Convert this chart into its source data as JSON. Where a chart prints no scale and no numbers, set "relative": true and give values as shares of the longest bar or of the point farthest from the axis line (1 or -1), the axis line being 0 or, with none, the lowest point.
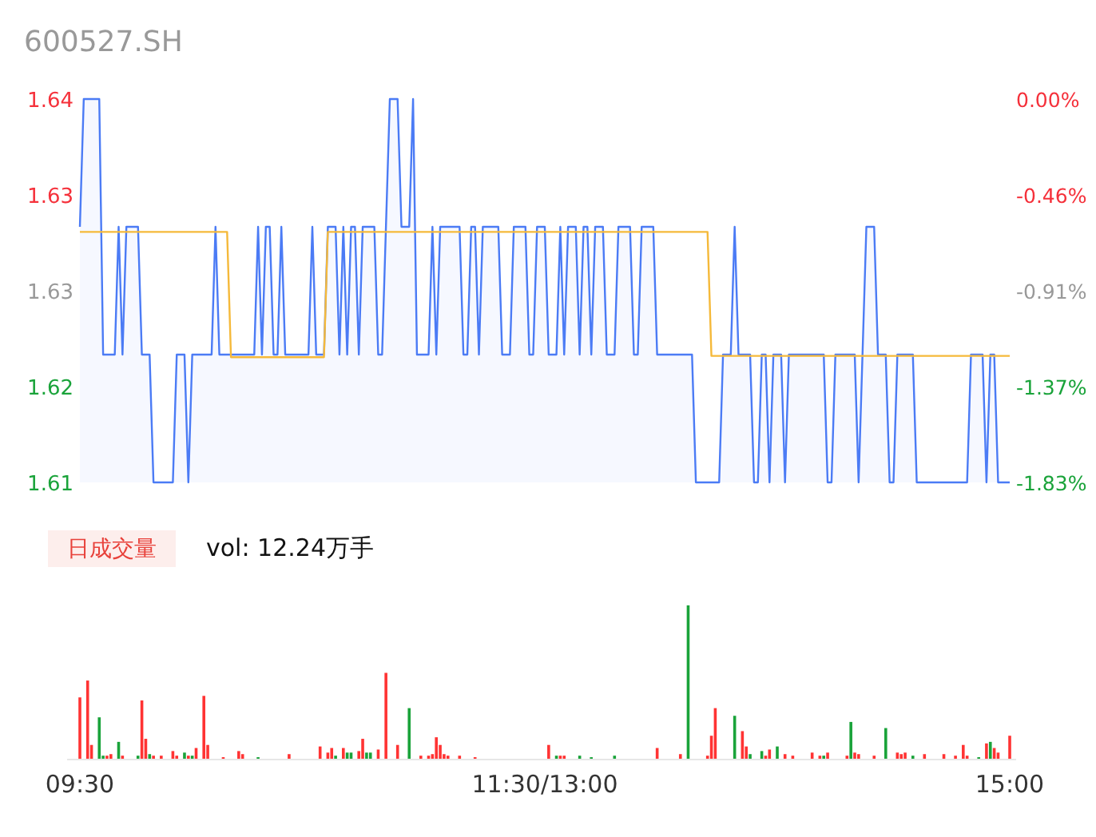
{
  "chart_data": [
    {
      "type": "line",
      "title": "600527.SH",
      "ylim": [
        1.61,
        1.64
      ],
      "categories": [
        null,
        null,
        null,
        null,
        null,
        null,
        null,
        null,
        null,
        null,
        null,
        null,
        null,
        null,
        null,
        null,
        null,
        null,
        null,
        null,
        null,
        null,
        null,
        null,
        null,
        null,
        null,
        null,
        null,
        null,
        null,
        null,
        null,
        null,
        null,
        null,
        null,
        null,
        null,
        null,
        null,
        null,
        null,
        null,
        null,
        null,
        null,
        null,
        null,
        null,
        null,
        null,
        null,
        null,
        null,
        null,
        null,
        null,
        null,
        null,
        null,
        null,
        null,
        null,
        null,
        null,
        null,
        null,
        null,
        null,
        null,
        null,
        null,
        null,
        null,
        null,
        null,
        null,
        null,
        null,
        null,
        null,
        null,
        null,
        null,
        null,
        null,
        null,
        null,
        null,
        null,
        null,
        null,
        null,
        null,
        null,
        null,
        null,
        null,
        null,
        null,
        null,
        null,
        null,
        null,
        null,
        null,
        null,
        null,
        null,
        null,
        null,
        null,
        null,
        null,
        null,
        null,
        null,
        null,
        null,
        null,
        null,
        null,
        null,
        null,
        null,
        null,
        null,
        null,
        null,
        null,
        null,
        null,
        null,
        null,
        null,
        null,
        null,
        null,
        null,
        null,
        null,
        null,
        null,
        null,
        null,
        null,
        null,
        null,
        null,
        null,
        null,
        null,
        null,
        null,
        null,
        null,
        null,
        null,
        null,
        null,
        null,
        null,
        null,
        null,
        null,
        null,
        null,
        null,
        null,
        null,
        null,
        null,
        null,
        null,
        null,
        null,
        null,
        null,
        null,
        null,
        null,
        null,
        null,
        null,
        null,
        null,
        null,
        null,
        null,
        null,
        null,
        null,
        null,
        null,
        null,
        null,
        null,
        null,
        null,
        null,
        null,
        null,
        null,
        null,
        null,
        null,
        null,
        null,
        null,
        null,
        null,
        null,
        null,
        null,
        null,
        null,
        null,
        null,
        null,
        null,
        null,
        null,
        null,
        null,
        null,
        null,
        null,
        null,
        null,
        null,
        null,
        null,
        null,
        null,
        null,
        null,
        null,
        null,
        null,
        null
      ],
      "yticks": [
        {
          "value": 1.61,
          "label": "1.61"
        },
        {
          "value": 1.6175,
          "label": "1.62"
        },
        {
          "value": 1.625,
          "label": "1.63"
        },
        {
          "value": 1.6325,
          "label": "1.63"
        },
        {
          "value": 1.64,
          "label": "1.64"
        }
      ],
      "y2lim": [
        -1.83,
        0
      ],
      "y2ticks": [
        {
          "value": -1.83,
          "label": "-1.83%"
        },
        {
          "value": -1.3725,
          "label": "-1.37%"
        },
        {
          "value": -0.915,
          "label": "-0.91%"
        },
        {
          "value": -0.4575,
          "label": "-0.46%"
        },
        {
          "value": 0,
          "label": "0.00%"
        }
      ],
      "tick_labels": "y",
      "series": [
        {
          "type": "area",
          "color": "#4b7bf5",
          "values": [
            1.63,
            1.64,
            1.64,
            1.64,
            1.64,
            1.64,
            1.62,
            1.62,
            1.62,
            1.62,
            1.63,
            1.62,
            1.63,
            1.63,
            1.63,
            1.63,
            1.62,
            1.62,
            1.62,
            1.61,
            1.61,
            1.61,
            1.61,
            1.61,
            1.61,
            1.62,
            1.62,
            1.62,
            1.61,
            1.62,
            1.62,
            1.62,
            1.62,
            1.62,
            1.62,
            1.63,
            1.62,
            1.62,
            1.62,
            1.62,
            1.62,
            1.62,
            1.62,
            1.62,
            1.62,
            1.62,
            1.63,
            1.62,
            1.63,
            1.63,
            1.62,
            1.62,
            1.63,
            1.62,
            1.62,
            1.62,
            1.62,
            1.62,
            1.62,
            1.62,
            1.63,
            1.62,
            1.62,
            1.62,
            1.63,
            1.63,
            1.63,
            1.62,
            1.63,
            1.62,
            1.63,
            1.63,
            1.62,
            1.63,
            1.63,
            1.63,
            1.63,
            1.62,
            1.62,
            1.63,
            1.64,
            1.64,
            1.64,
            1.63,
            1.63,
            1.63,
            1.64,
            1.62,
            1.62,
            1.62,
            1.62,
            1.63,
            1.62,
            1.63,
            1.63,
            1.63,
            1.63,
            1.63,
            1.63,
            1.62,
            1.62,
            1.63,
            1.63,
            1.62,
            1.63,
            1.63,
            1.63,
            1.63,
            1.63,
            1.62,
            1.62,
            1.62,
            1.63,
            1.63,
            1.63,
            1.63,
            1.62,
            1.62,
            1.63,
            1.63,
            1.63,
            1.62,
            1.62,
            1.62,
            1.63,
            1.62,
            1.63,
            1.63,
            1.63,
            1.62,
            1.63,
            1.63,
            1.62,
            1.63,
            1.63,
            1.63,
            1.62,
            1.62,
            1.62,
            1.63,
            1.63,
            1.63,
            1.63,
            1.62,
            1.62,
            1.63,
            1.63,
            1.63,
            1.63,
            1.62,
            1.62,
            1.62,
            1.62,
            1.62,
            1.62,
            1.62,
            1.62,
            1.62,
            1.62,
            1.61,
            1.61,
            1.61,
            1.61,
            1.61,
            1.61,
            1.61,
            1.62,
            1.62,
            1.62,
            1.63,
            1.62,
            1.62,
            1.62,
            1.62,
            1.61,
            1.61,
            1.62,
            1.62,
            1.61,
            1.62,
            1.62,
            1.62,
            1.61,
            1.62,
            1.62,
            1.62,
            1.62,
            1.62,
            1.62,
            1.62,
            1.62,
            1.62,
            1.62,
            1.61,
            1.61,
            1.62,
            1.62,
            1.62,
            1.62,
            1.62,
            1.62,
            1.61,
            1.62,
            1.63,
            1.63,
            1.63,
            1.62,
            1.62,
            1.62,
            1.61,
            1.61,
            1.62,
            1.62,
            1.62,
            1.62,
            1.62,
            1.61,
            1.61,
            1.61,
            1.61,
            1.61,
            1.61,
            1.61,
            1.61,
            1.61,
            1.61,
            1.61,
            1.61,
            1.61,
            1.61,
            1.62,
            1.62,
            1.62,
            1.62,
            1.61,
            1.62,
            1.62,
            1.61,
            1.61,
            1.61,
            1.61
          ]
        },
        {
          "type": "line",
          "color": "#f5b93a",
          "values": [
            1.6296,
            1.6296,
            1.6296,
            1.6296,
            1.6296,
            1.6296,
            1.6296,
            1.6296,
            1.6296,
            1.6296,
            1.6296,
            1.6296,
            1.6296,
            1.6296,
            1.6296,
            1.6296,
            1.6296,
            1.6296,
            1.6296,
            1.6296,
            1.6296,
            1.6296,
            1.6296,
            1.6296,
            1.6296,
            1.6296,
            1.6296,
            1.6296,
            1.6296,
            1.6296,
            1.6296,
            1.6296,
            1.6296,
            1.6296,
            1.6296,
            1.6296,
            1.6296,
            1.6296,
            1.6296,
            1.6198,
            1.6198,
            1.6198,
            1.6198,
            1.6198,
            1.6198,
            1.6198,
            1.6198,
            1.6198,
            1.6198,
            1.6198,
            1.6198,
            1.6198,
            1.6198,
            1.6198,
            1.6198,
            1.6198,
            1.6198,
            1.6198,
            1.6198,
            1.6198,
            1.6198,
            1.6198,
            1.6198,
            1.6198,
            1.6296,
            1.6296,
            1.6296,
            1.6296,
            1.6296,
            1.6296,
            1.6296,
            1.6296,
            1.6296,
            1.6296,
            1.6296,
            1.6296,
            1.6296,
            1.6296,
            1.6296,
            1.6296,
            1.6296,
            1.6296,
            1.6296,
            1.6296,
            1.6296,
            1.6296,
            1.6296,
            1.6296,
            1.6296,
            1.6296,
            1.6296,
            1.6296,
            1.6296,
            1.6296,
            1.6296,
            1.6296,
            1.6296,
            1.6296,
            1.6296,
            1.6296,
            1.6296,
            1.6296,
            1.6296,
            1.6296,
            1.6296,
            1.6296,
            1.6296,
            1.6296,
            1.6296,
            1.6296,
            1.6296,
            1.6296,
            1.6296,
            1.6296,
            1.6296,
            1.6296,
            1.6296,
            1.6296,
            1.6296,
            1.6296,
            1.6296,
            1.6296,
            1.6296,
            1.6296,
            1.6296,
            1.6296,
            1.6296,
            1.6296,
            1.6296,
            1.6296,
            1.6296,
            1.6296,
            1.6296,
            1.6296,
            1.6296,
            1.6296,
            1.6296,
            1.6296,
            1.6296,
            1.6296,
            1.6296,
            1.6296,
            1.6296,
            1.6296,
            1.6296,
            1.6296,
            1.6296,
            1.6296,
            1.6296,
            1.6296,
            1.6296,
            1.6296,
            1.6296,
            1.6296,
            1.6296,
            1.6296,
            1.6296,
            1.6296,
            1.6296,
            1.6296,
            1.6296,
            1.6296,
            1.6296,
            1.6199,
            1.6199,
            1.6199,
            1.6199,
            1.6199,
            1.6199,
            1.6199,
            1.6199,
            1.6199,
            1.6199,
            1.6199,
            1.6199,
            1.6199,
            1.6199,
            1.6199,
            1.6199,
            1.6199,
            1.6199,
            1.6199,
            1.6199,
            1.6199,
            1.6199,
            1.6199,
            1.6199,
            1.6199,
            1.6199,
            1.6199,
            1.6199,
            1.6199,
            1.6199,
            1.6199,
            1.6199,
            1.6199,
            1.6199,
            1.6199,
            1.6199,
            1.6199,
            1.6199,
            1.6199,
            1.6199,
            1.6199,
            1.6199,
            1.6199,
            1.6199,
            1.6199,
            1.6199,
            1.6199,
            1.6199,
            1.6199,
            1.6199,
            1.6199,
            1.6199,
            1.6199,
            1.6199,
            1.6199,
            1.6199,
            1.6199,
            1.6199,
            1.6199,
            1.6199,
            1.6199,
            1.6199,
            1.6199,
            1.6199,
            1.6199,
            1.6199,
            1.6199,
            1.6199,
            1.6199,
            1.6199,
            1.6199,
            1.6199,
            1.6199,
            1.6199,
            1.6199,
            1.6199,
            1.6199,
            1.6199
          ]
        }
      ]
    },
    {
      "type": "bar",
      "title": "日成交量",
      "subtitle": "vol: 12.24万手",
      "relative": true,
      "categories": [
        "09:30",
        null,
        null,
        null,
        null,
        null,
        null,
        null,
        null,
        null,
        null,
        null,
        null,
        null,
        null,
        null,
        null,
        null,
        null,
        null,
        null,
        null,
        null,
        null,
        null,
        null,
        null,
        null,
        null,
        null,
        null,
        null,
        null,
        null,
        null,
        null,
        null,
        null,
        null,
        null,
        null,
        null,
        null,
        null,
        null,
        null,
        null,
        null,
        null,
        null,
        null,
        null,
        null,
        null,
        null,
        null,
        null,
        null,
        null,
        null,
        null,
        null,
        null,
        null,
        null,
        null,
        null,
        null,
        null,
        null,
        null,
        null,
        null,
        null,
        null,
        null,
        null,
        null,
        null,
        null,
        null,
        null,
        null,
        null,
        null,
        null,
        null,
        null,
        null,
        null,
        null,
        null,
        null,
        null,
        null,
        null,
        null,
        null,
        null,
        null,
        null,
        null,
        null,
        null,
        null,
        null,
        null,
        null,
        null,
        null,
        null,
        null,
        null,
        null,
        null,
        null,
        null,
        null,
        null,
        null,
        "11:30/13:00",
        null,
        null,
        null,
        null,
        null,
        null,
        null,
        null,
        null,
        null,
        null,
        null,
        null,
        null,
        null,
        null,
        null,
        null,
        null,
        null,
        null,
        null,
        null,
        null,
        null,
        null,
        null,
        null,
        null,
        null,
        null,
        null,
        null,
        null,
        null,
        null,
        null,
        null,
        null,
        null,
        null,
        null,
        null,
        null,
        null,
        null,
        null,
        null,
        null,
        null,
        null,
        null,
        null,
        null,
        null,
        null,
        null,
        null,
        null,
        null,
        null,
        null,
        null,
        null,
        null,
        null,
        null,
        null,
        null,
        null,
        null,
        null,
        null,
        null,
        null,
        null,
        null,
        null,
        null,
        null,
        null,
        null,
        null,
        null,
        null,
        null,
        null,
        null,
        null,
        null,
        null,
        null,
        null,
        null,
        null,
        null,
        null,
        null,
        null,
        null,
        null,
        null,
        null,
        null,
        null,
        null,
        null,
        null,
        null,
        null,
        null,
        null,
        null,
        null,
        null,
        null,
        null,
        null,
        null,
        "15:00"
      ],
      "tick_labels": "x",
      "values": [
        0.4,
        null,
        0.51,
        0.09,
        null,
        0.27,
        0.02,
        0.02,
        0.03,
        null,
        0.11,
        0.02,
        null,
        null,
        null,
        0.02,
        0.38,
        0.13,
        0.03,
        0.02,
        null,
        0.02,
        null,
        null,
        0.05,
        0.02,
        null,
        0.04,
        0.02,
        0.02,
        0.07,
        null,
        0.41,
        0.09,
        null,
        null,
        null,
        0.01,
        null,
        null,
        null,
        0.05,
        0.03,
        null,
        null,
        null,
        0.01,
        null,
        null,
        null,
        null,
        null,
        null,
        null,
        0.03,
        null,
        null,
        null,
        null,
        null,
        null,
        null,
        0.08,
        null,
        0.04,
        0.07,
        0.02,
        null,
        0.07,
        0.04,
        0.04,
        null,
        0.05,
        0.13,
        0.04,
        0.04,
        null,
        0.06,
        null,
        0.56,
        null,
        null,
        0.09,
        null,
        null,
        0.33,
        null,
        null,
        0.02,
        null,
        0.02,
        0.03,
        0.14,
        0.09,
        0.03,
        0.02,
        null,
        null,
        0.02,
        null,
        null,
        null,
        0.01,
        null,
        null,
        null,
        null,
        null,
        null,
        null,
        null,
        null,
        null,
        null,
        null,
        null,
        null,
        null,
        null,
        null,
        null,
        0.09,
        null,
        0.02,
        0.02,
        0.02,
        null,
        null,
        null,
        0.02,
        null,
        null,
        0.01,
        null,
        null,
        null,
        null,
        null,
        0.02,
        null,
        null,
        null,
        null,
        null,
        null,
        null,
        null,
        null,
        null,
        0.07,
        null,
        null,
        null,
        null,
        null,
        0.03,
        null,
        1,
        null,
        null,
        null,
        null,
        0.02,
        0.15,
        0.33,
        null,
        null,
        null,
        null,
        0.28,
        null,
        0.18,
        0.08,
        0.03,
        null,
        null,
        0.05,
        0.02,
        0.06,
        null,
        0.08,
        null,
        0.03,
        null,
        0.02,
        null,
        null,
        null,
        null,
        0.04,
        null,
        0.02,
        0.02,
        0.04,
        null,
        null,
        null,
        null,
        0.02,
        0.24,
        0.04,
        0.03,
        null,
        null,
        null,
        0.02,
        null,
        null,
        0.2,
        null,
        null,
        0.04,
        0.03,
        0.04,
        null,
        0.02,
        null,
        null,
        0.03,
        null,
        null,
        null,
        null,
        0.03,
        null,
        null,
        0.02,
        null,
        0.09,
        0.02,
        null,
        null,
        0.01,
        null,
        0.1,
        0.11,
        0.07,
        0.04,
        null,
        null,
        0.15
      ],
      "colors": [
        "#ff3333",
        null,
        "#ff3333",
        "#ff3333",
        null,
        "#1aa33a",
        "#1aa33a",
        "#ff3333",
        "#ff3333",
        null,
        "#1aa33a",
        "#ff3333",
        null,
        null,
        null,
        "#1aa33a",
        "#ff3333",
        "#ff3333",
        "#1aa33a",
        "#ff3333",
        null,
        "#ff3333",
        null,
        null,
        "#ff3333",
        "#ff3333",
        null,
        "#1aa33a",
        "#ff3333",
        "#1aa33a",
        "#ff3333",
        null,
        "#ff3333",
        "#ff3333",
        null,
        null,
        null,
        "#ff3333",
        null,
        null,
        null,
        "#ff3333",
        "#ff3333",
        null,
        null,
        null,
        "#1aa33a",
        null,
        null,
        null,
        null,
        null,
        null,
        null,
        "#ff3333",
        null,
        null,
        null,
        null,
        null,
        null,
        null,
        "#ff3333",
        null,
        "#ff3333",
        "#ff3333",
        "#1aa33a",
        null,
        "#ff3333",
        "#1aa33a",
        "#1aa33a",
        null,
        "#ff3333",
        "#ff3333",
        "#1aa33a",
        "#1aa33a",
        null,
        "#ff3333",
        null,
        "#ff3333",
        null,
        null,
        "#ff3333",
        null,
        null,
        "#1aa33a",
        null,
        null,
        "#ff3333",
        null,
        "#ff3333",
        "#ff3333",
        "#ff3333",
        "#ff3333",
        "#ff3333",
        "#ff3333",
        null,
        null,
        "#ff3333",
        null,
        null,
        null,
        "#ff3333",
        null,
        null,
        null,
        null,
        null,
        null,
        null,
        null,
        null,
        null,
        null,
        null,
        null,
        null,
        null,
        null,
        null,
        null,
        "#ff3333",
        null,
        "#1aa33a",
        "#ff3333",
        "#ff3333",
        null,
        null,
        null,
        "#1aa33a",
        null,
        null,
        "#1aa33a",
        null,
        null,
        null,
        null,
        null,
        "#1aa33a",
        null,
        null,
        null,
        null,
        null,
        null,
        null,
        null,
        null,
        null,
        "#ff3333",
        null,
        null,
        null,
        null,
        null,
        "#ff3333",
        null,
        "#1aa33a",
        null,
        null,
        null,
        null,
        "#ff3333",
        "#ff3333",
        "#ff3333",
        null,
        null,
        null,
        null,
        "#1aa33a",
        null,
        "#ff3333",
        "#ff3333",
        "#1aa33a",
        null,
        null,
        "#1aa33a",
        "#ff3333",
        "#ff3333",
        null,
        "#1aa33a",
        null,
        "#ff3333",
        null,
        "#ff3333",
        null,
        null,
        null,
        null,
        "#ff3333",
        null,
        "#ff3333",
        "#1aa33a",
        "#ff3333",
        null,
        null,
        null,
        null,
        "#ff3333",
        "#1aa33a",
        "#ff3333",
        "#ff3333",
        null,
        null,
        null,
        "#ff3333",
        null,
        null,
        "#1aa33a",
        null,
        null,
        "#ff3333",
        "#ff3333",
        "#ff3333",
        null,
        "#1aa33a",
        null,
        null,
        "#ff3333",
        null,
        null,
        null,
        null,
        "#ff3333",
        null,
        null,
        "#ff3333",
        null,
        "#ff3333",
        "#ff3333",
        null,
        null,
        "#1aa33a",
        null,
        "#ff3333",
        "#1aa33a",
        "#ff3333",
        "#ff3333",
        null,
        null,
        "#ff3333"
      ]
    }
  ]
}
